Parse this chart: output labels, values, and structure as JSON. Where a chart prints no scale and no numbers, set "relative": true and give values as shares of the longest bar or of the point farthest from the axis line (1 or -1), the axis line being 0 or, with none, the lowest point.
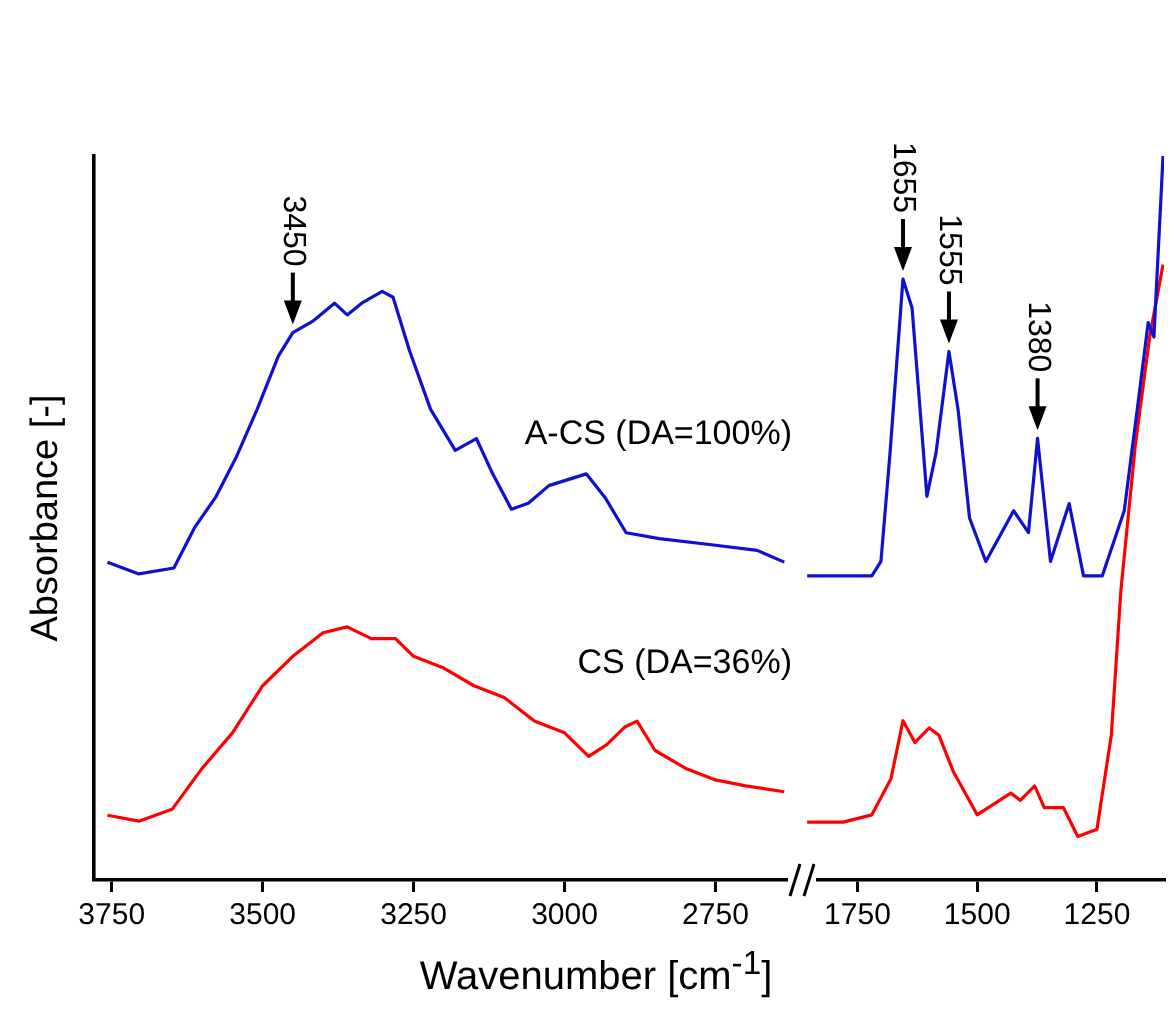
{
  "chart_data": [
    {
      "type": "line",
      "relative": true,
      "ylabel": "Absorbance [-]",
      "xlabel": "Wavenumber [cm$^{-1}$]",
      "xlim": [
        3780,
        2610
      ],
      "xticks": [
        3750,
        3500,
        3250,
        3000,
        2750
      ],
      "tick_labels": "x",
      "marker": "none",
      "annotations": [
        {
          "text": "3450",
          "x": 3450,
          "y": 0.93
        }
      ],
      "series": [
        {
          "name": "A-CS (DA=100%)",
          "color": "#1010d0",
          "x": [
            3757,
            3705,
            3647,
            3612,
            3578,
            3543,
            3509,
            3474,
            3450,
            3416,
            3381,
            3360,
            3336,
            3302,
            3284,
            3257,
            3222,
            3181,
            3146,
            3119,
            3088,
            3060,
            3026,
            2964,
            2933,
            2898,
            2843,
            2760,
            2681,
            2636
          ],
          "values": [
            0.54,
            0.52,
            0.53,
            0.6,
            0.65,
            0.72,
            0.8,
            0.89,
            0.93,
            0.95,
            0.98,
            0.96,
            0.98,
            1,
            0.99,
            0.9,
            0.8,
            0.73,
            0.75,
            0.69,
            0.63,
            0.64,
            0.67,
            0.69,
            0.65,
            0.59,
            0.58,
            0.57,
            0.56,
            0.54
          ]
        },
        {
          "name": "CS (DA=36%)",
          "color": "#ff0000",
          "x": [
            3757,
            3705,
            3650,
            3600,
            3550,
            3500,
            3450,
            3400,
            3360,
            3320,
            3280,
            3250,
            3200,
            3150,
            3100,
            3050,
            3000,
            2960,
            2930,
            2900,
            2880,
            2850,
            2800,
            2750,
            2700,
            2636
          ],
          "values": [
            0.11,
            0.1,
            0.12,
            0.19,
            0.25,
            0.33,
            0.38,
            0.42,
            0.43,
            0.41,
            0.41,
            0.38,
            0.36,
            0.33,
            0.31,
            0.27,
            0.25,
            0.21,
            0.23,
            0.26,
            0.27,
            0.22,
            0.19,
            0.17,
            0.16,
            0.15
          ]
        }
      ]
    },
    {
      "type": "line",
      "relative": true,
      "xlim": [
        1870,
        1110
      ],
      "xticks": [
        1750,
        1500,
        1250
      ],
      "tick_labels": "x",
      "marker": "none",
      "annotations": [
        {
          "text": "1655",
          "x": 1655,
          "y": 0.83
        },
        {
          "text": "1555",
          "x": 1559,
          "y": 0.73
        },
        {
          "text": "1380",
          "x": 1374,
          "y": 0.61
        }
      ],
      "series": [
        {
          "color": "#1010d0",
          "x": [
            1855,
            1786,
            1720,
            1701,
            1682,
            1655,
            1636,
            1605,
            1586,
            1559,
            1540,
            1516,
            1482,
            1424,
            1393,
            1374,
            1347,
            1308,
            1278,
            1239,
            1193,
            1162,
            1143,
            1131,
            1112
          ],
          "values": [
            0.42,
            0.42,
            0.42,
            0.44,
            0.59,
            0.83,
            0.79,
            0.53,
            0.59,
            0.73,
            0.65,
            0.5,
            0.44,
            0.51,
            0.48,
            0.61,
            0.44,
            0.52,
            0.42,
            0.42,
            0.51,
            0.67,
            0.77,
            0.75,
            1
          ]
        },
        {
          "color": "#ff0000",
          "x": [
            1855,
            1780,
            1720,
            1680,
            1655,
            1630,
            1600,
            1580,
            1550,
            1500,
            1430,
            1410,
            1380,
            1360,
            1320,
            1290,
            1250,
            1220,
            1200,
            1170,
            1140,
            1112
          ],
          "values": [
            0.08,
            0.08,
            0.09,
            0.14,
            0.22,
            0.19,
            0.21,
            0.2,
            0.15,
            0.09,
            0.12,
            0.11,
            0.13,
            0.1,
            0.1,
            0.06,
            0.07,
            0.2,
            0.4,
            0.6,
            0.75,
            0.85
          ]
        }
      ]
    }
  ]
}
